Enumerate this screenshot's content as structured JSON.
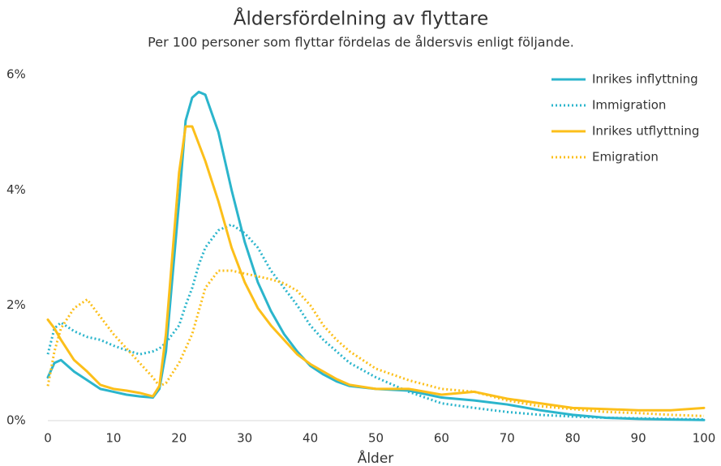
{
  "chart_data": {
    "type": "line",
    "title": "Åldersfördelning av flyttare",
    "subtitle": "Per 100 personer som flyttar fördelas de åldersvis enligt följande.",
    "x_label": "Ålder",
    "x": [
      0,
      1,
      2,
      4,
      6,
      8,
      10,
      12,
      14,
      16,
      17,
      18,
      20,
      21,
      22,
      23,
      24,
      26,
      28,
      30,
      32,
      34,
      36,
      38,
      40,
      42,
      44,
      46,
      50,
      55,
      60,
      65,
      70,
      75,
      80,
      85,
      90,
      95,
      100
    ],
    "series": [
      {
        "name": "Inrikes inflyttning",
        "color": "#2bb5cc",
        "dotted": false,
        "values": [
          0.75,
          1.0,
          1.05,
          0.85,
          0.7,
          0.55,
          0.5,
          0.45,
          0.42,
          0.4,
          0.55,
          1.2,
          3.8,
          5.2,
          5.6,
          5.7,
          5.65,
          5.0,
          4.0,
          3.1,
          2.4,
          1.9,
          1.5,
          1.2,
          0.95,
          0.8,
          0.68,
          0.6,
          0.55,
          0.52,
          0.4,
          0.35,
          0.28,
          0.18,
          0.1,
          0.05,
          0.03,
          0.02,
          0.01
        ]
      },
      {
        "name": "Immigration",
        "color": "#2bb5cc",
        "dotted": true,
        "values": [
          1.15,
          1.6,
          1.7,
          1.55,
          1.45,
          1.4,
          1.3,
          1.22,
          1.15,
          1.2,
          1.25,
          1.35,
          1.65,
          2.0,
          2.3,
          2.7,
          3.0,
          3.3,
          3.4,
          3.25,
          3.0,
          2.6,
          2.3,
          2.0,
          1.65,
          1.4,
          1.2,
          1.0,
          0.75,
          0.5,
          0.3,
          0.22,
          0.15,
          0.1,
          0.07,
          0.05,
          0.04,
          0.03,
          0.02
        ]
      },
      {
        "name": "Inrikes utflyttning",
        "color": "#fcbf1a",
        "dotted": false,
        "values": [
          1.75,
          1.6,
          1.4,
          1.05,
          0.85,
          0.62,
          0.55,
          0.52,
          0.48,
          0.42,
          0.6,
          1.5,
          4.3,
          5.1,
          5.1,
          4.8,
          4.5,
          3.8,
          3.0,
          2.4,
          1.95,
          1.65,
          1.4,
          1.15,
          0.98,
          0.85,
          0.72,
          0.62,
          0.55,
          0.55,
          0.45,
          0.5,
          0.38,
          0.3,
          0.22,
          0.2,
          0.18,
          0.18,
          0.22
        ]
      },
      {
        "name": "Emigration",
        "color": "#fcbf1a",
        "dotted": true,
        "values": [
          0.6,
          1.2,
          1.6,
          1.95,
          2.1,
          1.8,
          1.5,
          1.25,
          1.0,
          0.75,
          0.6,
          0.65,
          1.0,
          1.25,
          1.5,
          1.9,
          2.3,
          2.6,
          2.6,
          2.55,
          2.5,
          2.45,
          2.38,
          2.25,
          2.0,
          1.65,
          1.4,
          1.2,
          0.9,
          0.7,
          0.55,
          0.5,
          0.35,
          0.25,
          0.2,
          0.15,
          0.13,
          0.1,
          0.08
        ]
      }
    ],
    "xlim": [
      0,
      100
    ],
    "xticks": [
      0,
      10,
      20,
      30,
      40,
      50,
      60,
      70,
      80,
      90,
      100
    ],
    "ylim": [
      0,
      6
    ],
    "yticks": [
      {
        "value": 0,
        "label": "0%"
      },
      {
        "value": 2,
        "label": "2%"
      },
      {
        "value": 4,
        "label": "4%"
      },
      {
        "value": 6,
        "label": "6%"
      }
    ],
    "grid": false,
    "legend": "top-right"
  }
}
